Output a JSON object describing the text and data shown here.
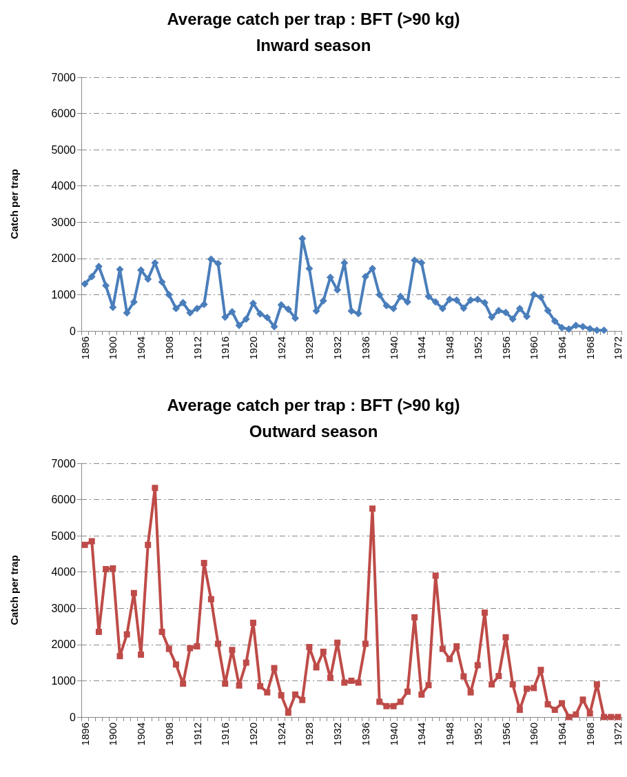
{
  "chart_data": [
    {
      "type": "line",
      "title": "Average catch per trap : BFT (>90 kg)",
      "subtitle": "Inward season",
      "ylabel": "Catch per trap",
      "categories": [
        "1896",
        null,
        null,
        null,
        "1900",
        null,
        null,
        null,
        "1904",
        null,
        null,
        null,
        "1908",
        null,
        null,
        null,
        "1912",
        null,
        null,
        null,
        "1916",
        null,
        null,
        null,
        "1920",
        null,
        null,
        null,
        "1924",
        null,
        null,
        null,
        "1928",
        null,
        null,
        null,
        "1932",
        null,
        null,
        null,
        "1936",
        null,
        null,
        null,
        "1940",
        null,
        null,
        null,
        "1944",
        null,
        null,
        null,
        "1948",
        null,
        null,
        null,
        "1952",
        null,
        null,
        null,
        "1956",
        null,
        null,
        null,
        "1960",
        null,
        null,
        null,
        "1964",
        null,
        null,
        null,
        "1968",
        null,
        null,
        null,
        "1972"
      ],
      "series": [
        {
          "color": "#4a7ebb",
          "values": [
            1300,
            1500,
            1780,
            1250,
            650,
            1700,
            500,
            800,
            1680,
            1430,
            1880,
            1350,
            1000,
            620,
            780,
            500,
            620,
            730,
            1980,
            1860,
            380,
            530,
            150,
            330,
            760,
            470,
            370,
            120,
            720,
            600,
            350,
            2550,
            1720,
            550,
            830,
            1480,
            1130,
            1880,
            550,
            480,
            1500,
            1720,
            1000,
            700,
            620,
            950,
            800,
            1950,
            1880,
            950,
            800,
            620,
            870,
            850,
            630,
            850,
            870,
            780,
            380,
            560,
            510,
            330,
            620,
            400,
            1000,
            930,
            560,
            270,
            90,
            50,
            150,
            120,
            60,
            20,
            20,
            null,
            null
          ]
        }
      ],
      "ylim": [
        0,
        7000
      ],
      "yticks": [
        0,
        1000,
        2000,
        3000,
        4000,
        5000,
        6000,
        7000
      ],
      "grid": "y",
      "marker": "diamond",
      "line_style": "solid"
    },
    {
      "type": "line",
      "title": "Average catch per trap : BFT (>90 kg)",
      "subtitle": "Outward season",
      "ylabel": "Catch per trap",
      "categories": [
        "1896",
        null,
        null,
        null,
        "1900",
        null,
        null,
        null,
        "1904",
        null,
        null,
        null,
        "1908",
        null,
        null,
        null,
        "1912",
        null,
        null,
        null,
        "1916",
        null,
        null,
        null,
        "1920",
        null,
        null,
        null,
        "1924",
        null,
        null,
        null,
        "1928",
        null,
        null,
        null,
        "1932",
        null,
        null,
        null,
        "1936",
        null,
        null,
        null,
        "1940",
        null,
        null,
        null,
        "1944",
        null,
        null,
        null,
        "1948",
        null,
        null,
        null,
        "1952",
        null,
        null,
        null,
        "1956",
        null,
        null,
        null,
        "1960",
        null,
        null,
        null,
        "1964",
        null,
        null,
        null,
        "1968",
        null,
        null,
        null,
        "1972"
      ],
      "series": [
        {
          "color": "#be4b48",
          "values": [
            4750,
            4850,
            2350,
            4080,
            4100,
            1680,
            2280,
            3420,
            1720,
            4750,
            6320,
            2350,
            1880,
            1450,
            920,
            1900,
            1950,
            4250,
            3250,
            2020,
            920,
            1850,
            870,
            1500,
            2600,
            850,
            680,
            1350,
            600,
            120,
            620,
            470,
            1930,
            1370,
            1800,
            1080,
            2050,
            950,
            1000,
            950,
            2020,
            5750,
            420,
            300,
            300,
            420,
            700,
            2750,
            620,
            880,
            3900,
            1880,
            1600,
            1950,
            1120,
            680,
            1430,
            2880,
            900,
            1130,
            2200,
            900,
            200,
            780,
            800,
            1300,
            350,
            200,
            380,
            0,
            70,
            480,
            100,
            900,
            0,
            0,
            0
          ]
        }
      ],
      "ylim": [
        0,
        7000
      ],
      "yticks": [
        0,
        1000,
        2000,
        3000,
        4000,
        5000,
        6000,
        7000
      ],
      "grid": "y",
      "marker": "square",
      "line_style": "solid"
    }
  ]
}
